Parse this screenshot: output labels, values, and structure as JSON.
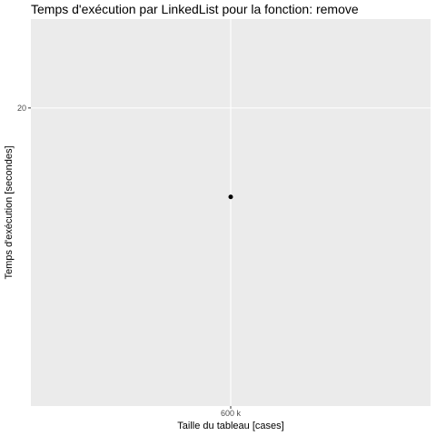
{
  "chart_data": {
    "type": "scatter",
    "title": "Temps d'exécution par LinkedList pour la fonction: remove",
    "xlabel": "Taille du tableau [cases]",
    "ylabel": "Temps d'exécution [secondes]",
    "x_ticks": [
      {
        "value": 600000,
        "label": "600 k"
      }
    ],
    "y_ticks": [
      {
        "value": 20,
        "label": "20"
      }
    ],
    "xlim": [
      599000,
      601000
    ],
    "ylim": [
      14.3,
      21.7
    ],
    "series": [
      {
        "points": [
          {
            "x": 600000,
            "y": 18.3
          }
        ]
      }
    ],
    "grid": true,
    "colors": {
      "panel_bg": "#ebebeb",
      "grid_line": "#ffffff",
      "point": "#000000",
      "tick_mark": "#333333",
      "tick_text": "#4d4d4d"
    }
  }
}
